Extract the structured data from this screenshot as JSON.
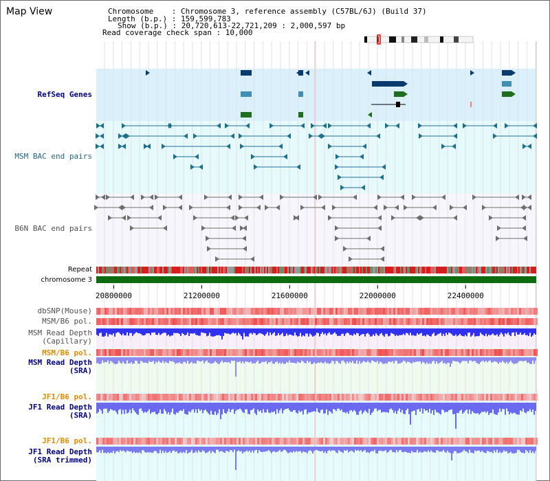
{
  "page": {
    "title": "Map View"
  },
  "info": {
    "chromosome": "Chromosome    : Chromosome 3, reference assembly (C57BL/6J) (Build 37)",
    "length": "Length (b.p.) : 159,599,783",
    "show": "Show (b.p.) : 20,720,613-22,721,209 : 2,000,597 bp",
    "coverage": "Read coverage check span : 10,000"
  },
  "tracks": {
    "refseq": "RefSeq Genes",
    "msm_bac": "MSM BAC end pairs",
    "b6n_bac": "B6N BAC end pairs",
    "repeat": "Repeat",
    "chromosome": "chromosome 3",
    "dbsnp": "dbSNP(Mouse)",
    "msm_b6_pol_1": "MSM/B6 pol.",
    "msm_read_depth_cap_1": "MSM Read Depth",
    "msm_read_depth_cap_2": "(Capillary)",
    "msm_b6_pol_2": "MSM/B6 pol.",
    "msm_read_depth_sra_1": "MSM Read Depth",
    "msm_read_depth_sra_2": "(SRA)",
    "jf1_b6_pol_1": "JF1/B6 pol.",
    "jf1_read_depth_sra_1": "JF1 Read Depth",
    "jf1_read_depth_sra_2": "(SRA)",
    "jf1_b6_pol_2": "JF1/B6 pol.",
    "jf1_read_depth_trim_1": "JF1 Read Depth",
    "jf1_read_depth_trim_2": "(SRA trimmed)"
  },
  "axis": {
    "ticks": [
      "20800000",
      "21200000",
      "21600000",
      "22000000",
      "22400000"
    ],
    "tick_values": [
      20800000,
      21200000,
      21600000,
      22000000,
      22400000
    ],
    "range": [
      20720613,
      22721209
    ]
  },
  "colors": {
    "refseq_bg": "#daf1fb",
    "bac_bg": "#e6fafc",
    "gene_navy": "#0b3a6e",
    "gene_steel": "#3f8fb5",
    "gene_green": "#1f6e1f",
    "msm_bac": "#1d6f8e",
    "b6n_bac": "#6e6e6e",
    "chromosome": "#0f6b0f",
    "depth_blue": "#3232f0",
    "pol_red": "#ee3333"
  }
}
